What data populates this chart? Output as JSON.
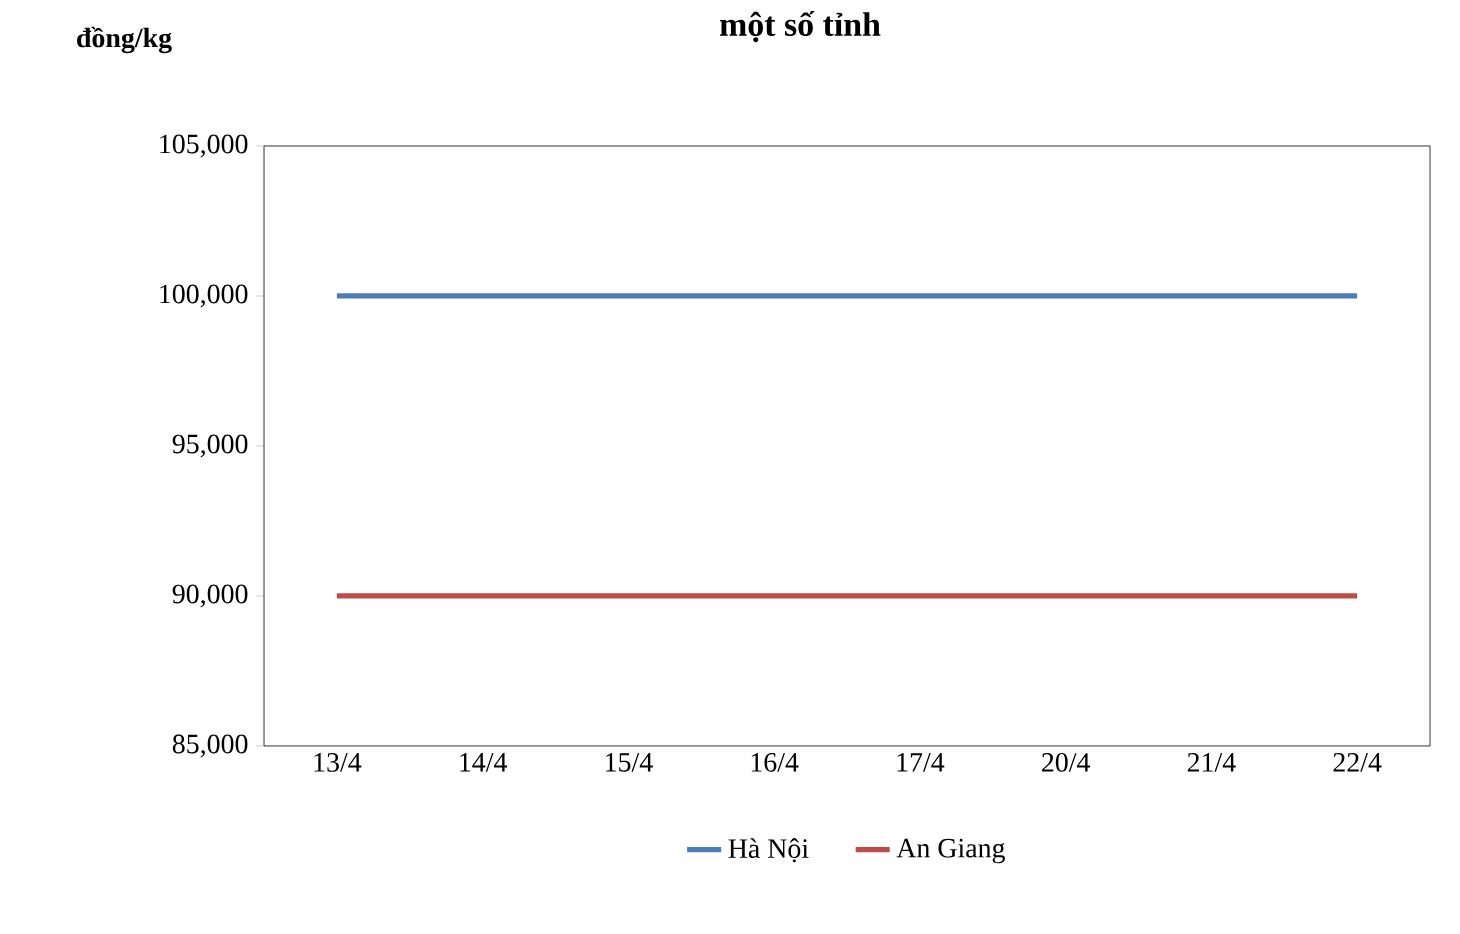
{
  "chart_data": {
    "type": "line",
    "title": "một số tỉnh",
    "ylabel": "đồng/kg",
    "categories": [
      "13/4",
      "14/4",
      "15/4",
      "16/4",
      "17/4",
      "20/4",
      "21/4",
      "22/4"
    ],
    "series": [
      {
        "name": "Hà Nội",
        "color": "#4a7ebb",
        "values": [
          100000,
          100000,
          100000,
          100000,
          100000,
          100000,
          100000,
          100000
        ]
      },
      {
        "name": "An Giang",
        "color": "#be4b48",
        "values": [
          90000,
          90000,
          90000,
          90000,
          90000,
          90000,
          90000,
          90000
        ]
      }
    ],
    "ylim": [
      85000,
      105000
    ],
    "yticks": [
      {
        "value": 85000,
        "label": "85,000"
      },
      {
        "value": 90000,
        "label": "90,000"
      },
      {
        "value": 95000,
        "label": "95,000"
      },
      {
        "value": 100000,
        "label": "100,000"
      },
      {
        "value": 105000,
        "label": "105,000"
      }
    ],
    "grid": false,
    "legend": "bottom",
    "marker": "none",
    "line_style": "solid"
  }
}
